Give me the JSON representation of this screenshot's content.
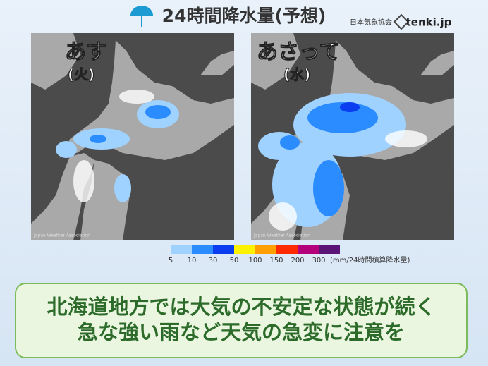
{
  "header": {
    "title": "24時間降水量(予想)",
    "source": "日本気象協会",
    "brand": "tenki.jp"
  },
  "maps": [
    {
      "day": "あす",
      "weekday": "(火)",
      "credit": "Japan Weather Association"
    },
    {
      "day": "あさって",
      "weekday": "(水)",
      "credit": "Japan Weather Association"
    }
  ],
  "legend": {
    "labels": [
      "5",
      "10",
      "30",
      "50",
      "100",
      "150",
      "200",
      "300"
    ],
    "colors": [
      "#a0d2ff",
      "#2b8cff",
      "#0a3cf0",
      "#fff200",
      "#ffa000",
      "#ff2a00",
      "#b4007a",
      "#5a1478"
    ],
    "unit": "(mm/24時間積算降水量)"
  },
  "caption": {
    "lines": [
      "北海道地方では大気の不安定な状態が続く",
      "急な強い雨など天気の急変に注意を"
    ]
  }
}
